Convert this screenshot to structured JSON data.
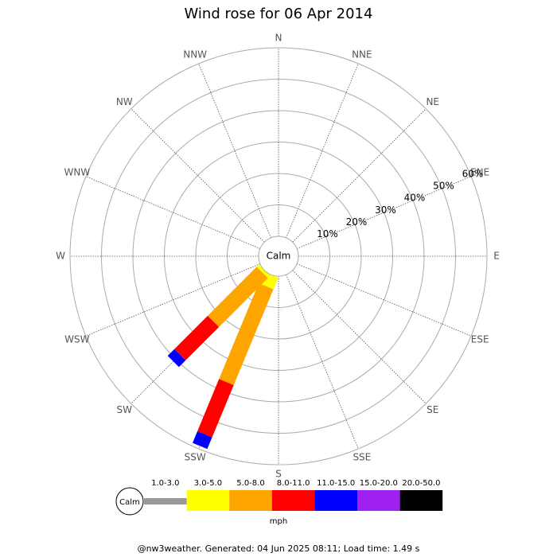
{
  "chart_data": {
    "type": "windrose",
    "title": "Wind rose for 06 Apr 2014",
    "directions": [
      "N",
      "NNE",
      "NE",
      "ENE",
      "E",
      "ESE",
      "SE",
      "SSE",
      "S",
      "SSW",
      "SW",
      "WSW",
      "W",
      "WNW",
      "NW",
      "NNW"
    ],
    "calm_label": "Calm",
    "rlim": [
      0,
      60
    ],
    "rticks": [
      {
        "value": 10,
        "label": "10%"
      },
      {
        "value": 20,
        "label": "20%"
      },
      {
        "value": 30,
        "label": "30%"
      },
      {
        "value": 40,
        "label": "40%"
      },
      {
        "value": 50,
        "label": "50%"
      },
      {
        "value": 60,
        "label": "60%"
      }
    ],
    "series": [
      {
        "name": "1.0-3.0",
        "color": "#999999",
        "values": [
          0,
          0,
          0,
          0,
          0,
          0,
          0,
          0,
          0,
          0,
          0,
          0,
          0,
          0,
          0,
          0
        ]
      },
      {
        "name": "3.0-5.0",
        "color": "#ffff00",
        "values": [
          0,
          0,
          0,
          0,
          0,
          0,
          0,
          0,
          0,
          4,
          1,
          0,
          0,
          0,
          0,
          0
        ]
      },
      {
        "name": "5.0-8.0",
        "color": "#ffa500",
        "values": [
          0,
          0,
          0,
          0,
          0,
          0,
          0,
          0,
          0,
          33,
          22,
          0,
          0,
          0,
          0,
          0
        ]
      },
      {
        "name": "8.0-11.0",
        "color": "#ff0000",
        "values": [
          0,
          0,
          0,
          0,
          0,
          0,
          0,
          0,
          0,
          18,
          15,
          0,
          0,
          0,
          0,
          0
        ]
      },
      {
        "name": "11.0-15.0",
        "color": "#0000ff",
        "values": [
          0,
          0,
          0,
          0,
          0,
          0,
          0,
          0,
          0,
          4,
          3,
          0,
          0,
          0,
          0,
          0
        ]
      },
      {
        "name": "15.0-20.0",
        "color": "#a020f0",
        "values": [
          0,
          0,
          0,
          0,
          0,
          0,
          0,
          0,
          0,
          0,
          0,
          0,
          0,
          0,
          0,
          0
        ]
      },
      {
        "name": "20.0-50.0",
        "color": "#000000",
        "values": [
          0,
          0,
          0,
          0,
          0,
          0,
          0,
          0,
          0,
          0,
          0,
          0,
          0,
          0,
          0,
          0
        ]
      }
    ],
    "legend_unit": "mph",
    "footer": "@nw3weather. Generated: 04 Jun 2025 08:11; Load time: 1.49 s"
  }
}
